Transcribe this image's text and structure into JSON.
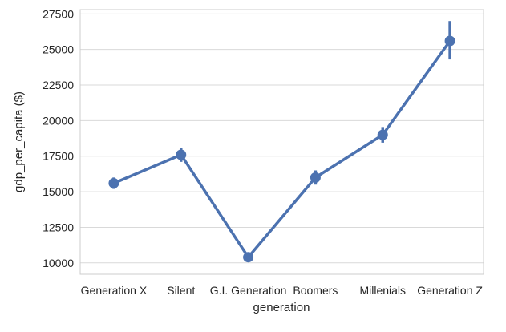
{
  "chart_data": {
    "type": "line",
    "title": "",
    "xlabel": "generation",
    "ylabel": "gdp_per_capita ($)",
    "categories": [
      "Generation X",
      "Silent",
      "G.I. Generation",
      "Boomers",
      "Millenials",
      "Generation Z"
    ],
    "series": [
      {
        "values": [
          15600,
          17600,
          10400,
          16000,
          19000,
          25600
        ],
        "ci_low": [
          15200,
          17100,
          10050,
          15500,
          18450,
          24300
        ],
        "ci_high": [
          16000,
          18100,
          10750,
          16500,
          19550,
          27000
        ],
        "color": "#4c72b0"
      }
    ],
    "ylim": [
      9200,
      27800
    ],
    "yticks": [
      10000,
      12500,
      15000,
      17500,
      20000,
      22500,
      25000,
      27500
    ],
    "ytick_labels": [
      "10000",
      "12500",
      "15000",
      "17500",
      "20000",
      "22500",
      "25000",
      "27500"
    ],
    "grid": true,
    "legend": "none"
  },
  "colors": {
    "line": "#4c72b0",
    "grid": "#d9d9d9",
    "axis_text": "#262626",
    "frame": "#cccccc"
  }
}
